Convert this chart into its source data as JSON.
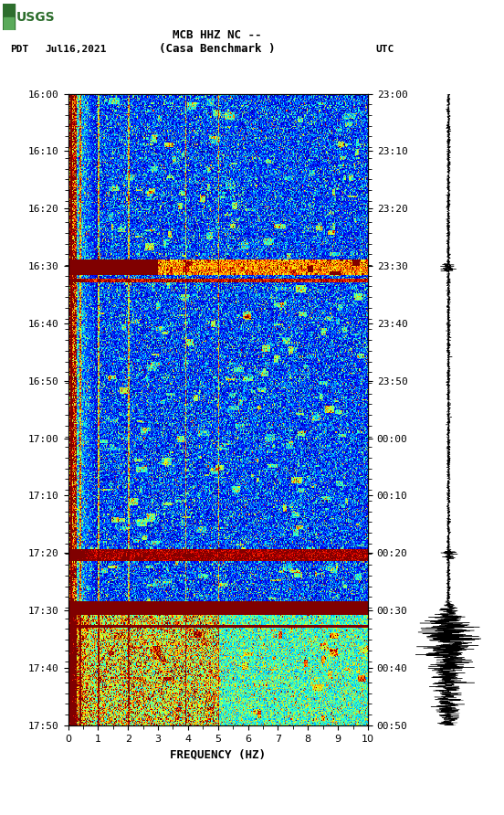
{
  "title_line1": "MCB HHZ NC --",
  "title_line2": "(Casa Benchmark )",
  "left_label": "PDT   Jul16,2021",
  "right_label": "UTC",
  "xlabel": "FREQUENCY (HZ)",
  "freq_ticks": [
    0,
    1,
    2,
    3,
    4,
    5,
    6,
    7,
    8,
    9,
    10
  ],
  "time_ticks_left": [
    "16:00",
    "16:10",
    "16:20",
    "16:30",
    "16:40",
    "16:50",
    "17:00",
    "17:10",
    "17:20",
    "17:30",
    "17:40",
    "17:50"
  ],
  "time_ticks_right": [
    "23:00",
    "23:10",
    "23:20",
    "23:30",
    "23:40",
    "23:50",
    "00:00",
    "00:10",
    "00:20",
    "00:30",
    "00:40",
    "00:50"
  ],
  "n_time": 600,
  "n_freq": 400,
  "background_color": "#ffffff",
  "spectrogram_cmap": "jet",
  "vmin": 0.0,
  "vmax": 6.0
}
